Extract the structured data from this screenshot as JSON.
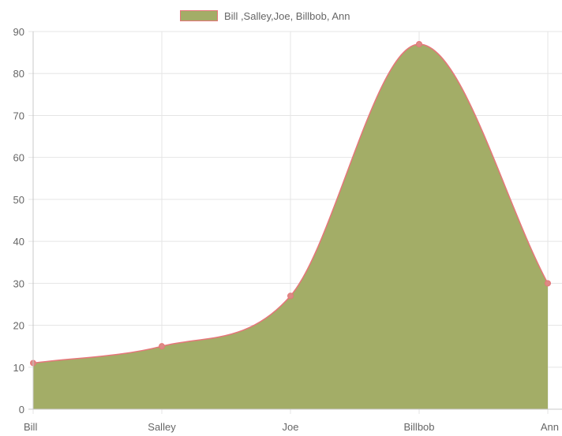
{
  "chart_data": {
    "type": "area",
    "categories": [
      "Bill",
      "Salley",
      "Joe",
      "Billbob",
      "Ann"
    ],
    "series": [
      {
        "name": "Bill ,Salley,Joe, Billbob, Ann",
        "values": [
          11,
          15,
          27,
          87,
          30
        ]
      }
    ],
    "y_ticks": [
      "0",
      "10",
      "20",
      "30",
      "40",
      "50",
      "60",
      "70",
      "80",
      "90"
    ],
    "ylim": [
      0,
      90
    ],
    "grid": true,
    "legend": "top-center",
    "colors": {
      "fill": "#a3ad67",
      "line": "#e6767a",
      "point": "#dc8a84",
      "grid": "#e5e5e5",
      "axis": "#c8c8c8",
      "text": "#666666"
    }
  }
}
